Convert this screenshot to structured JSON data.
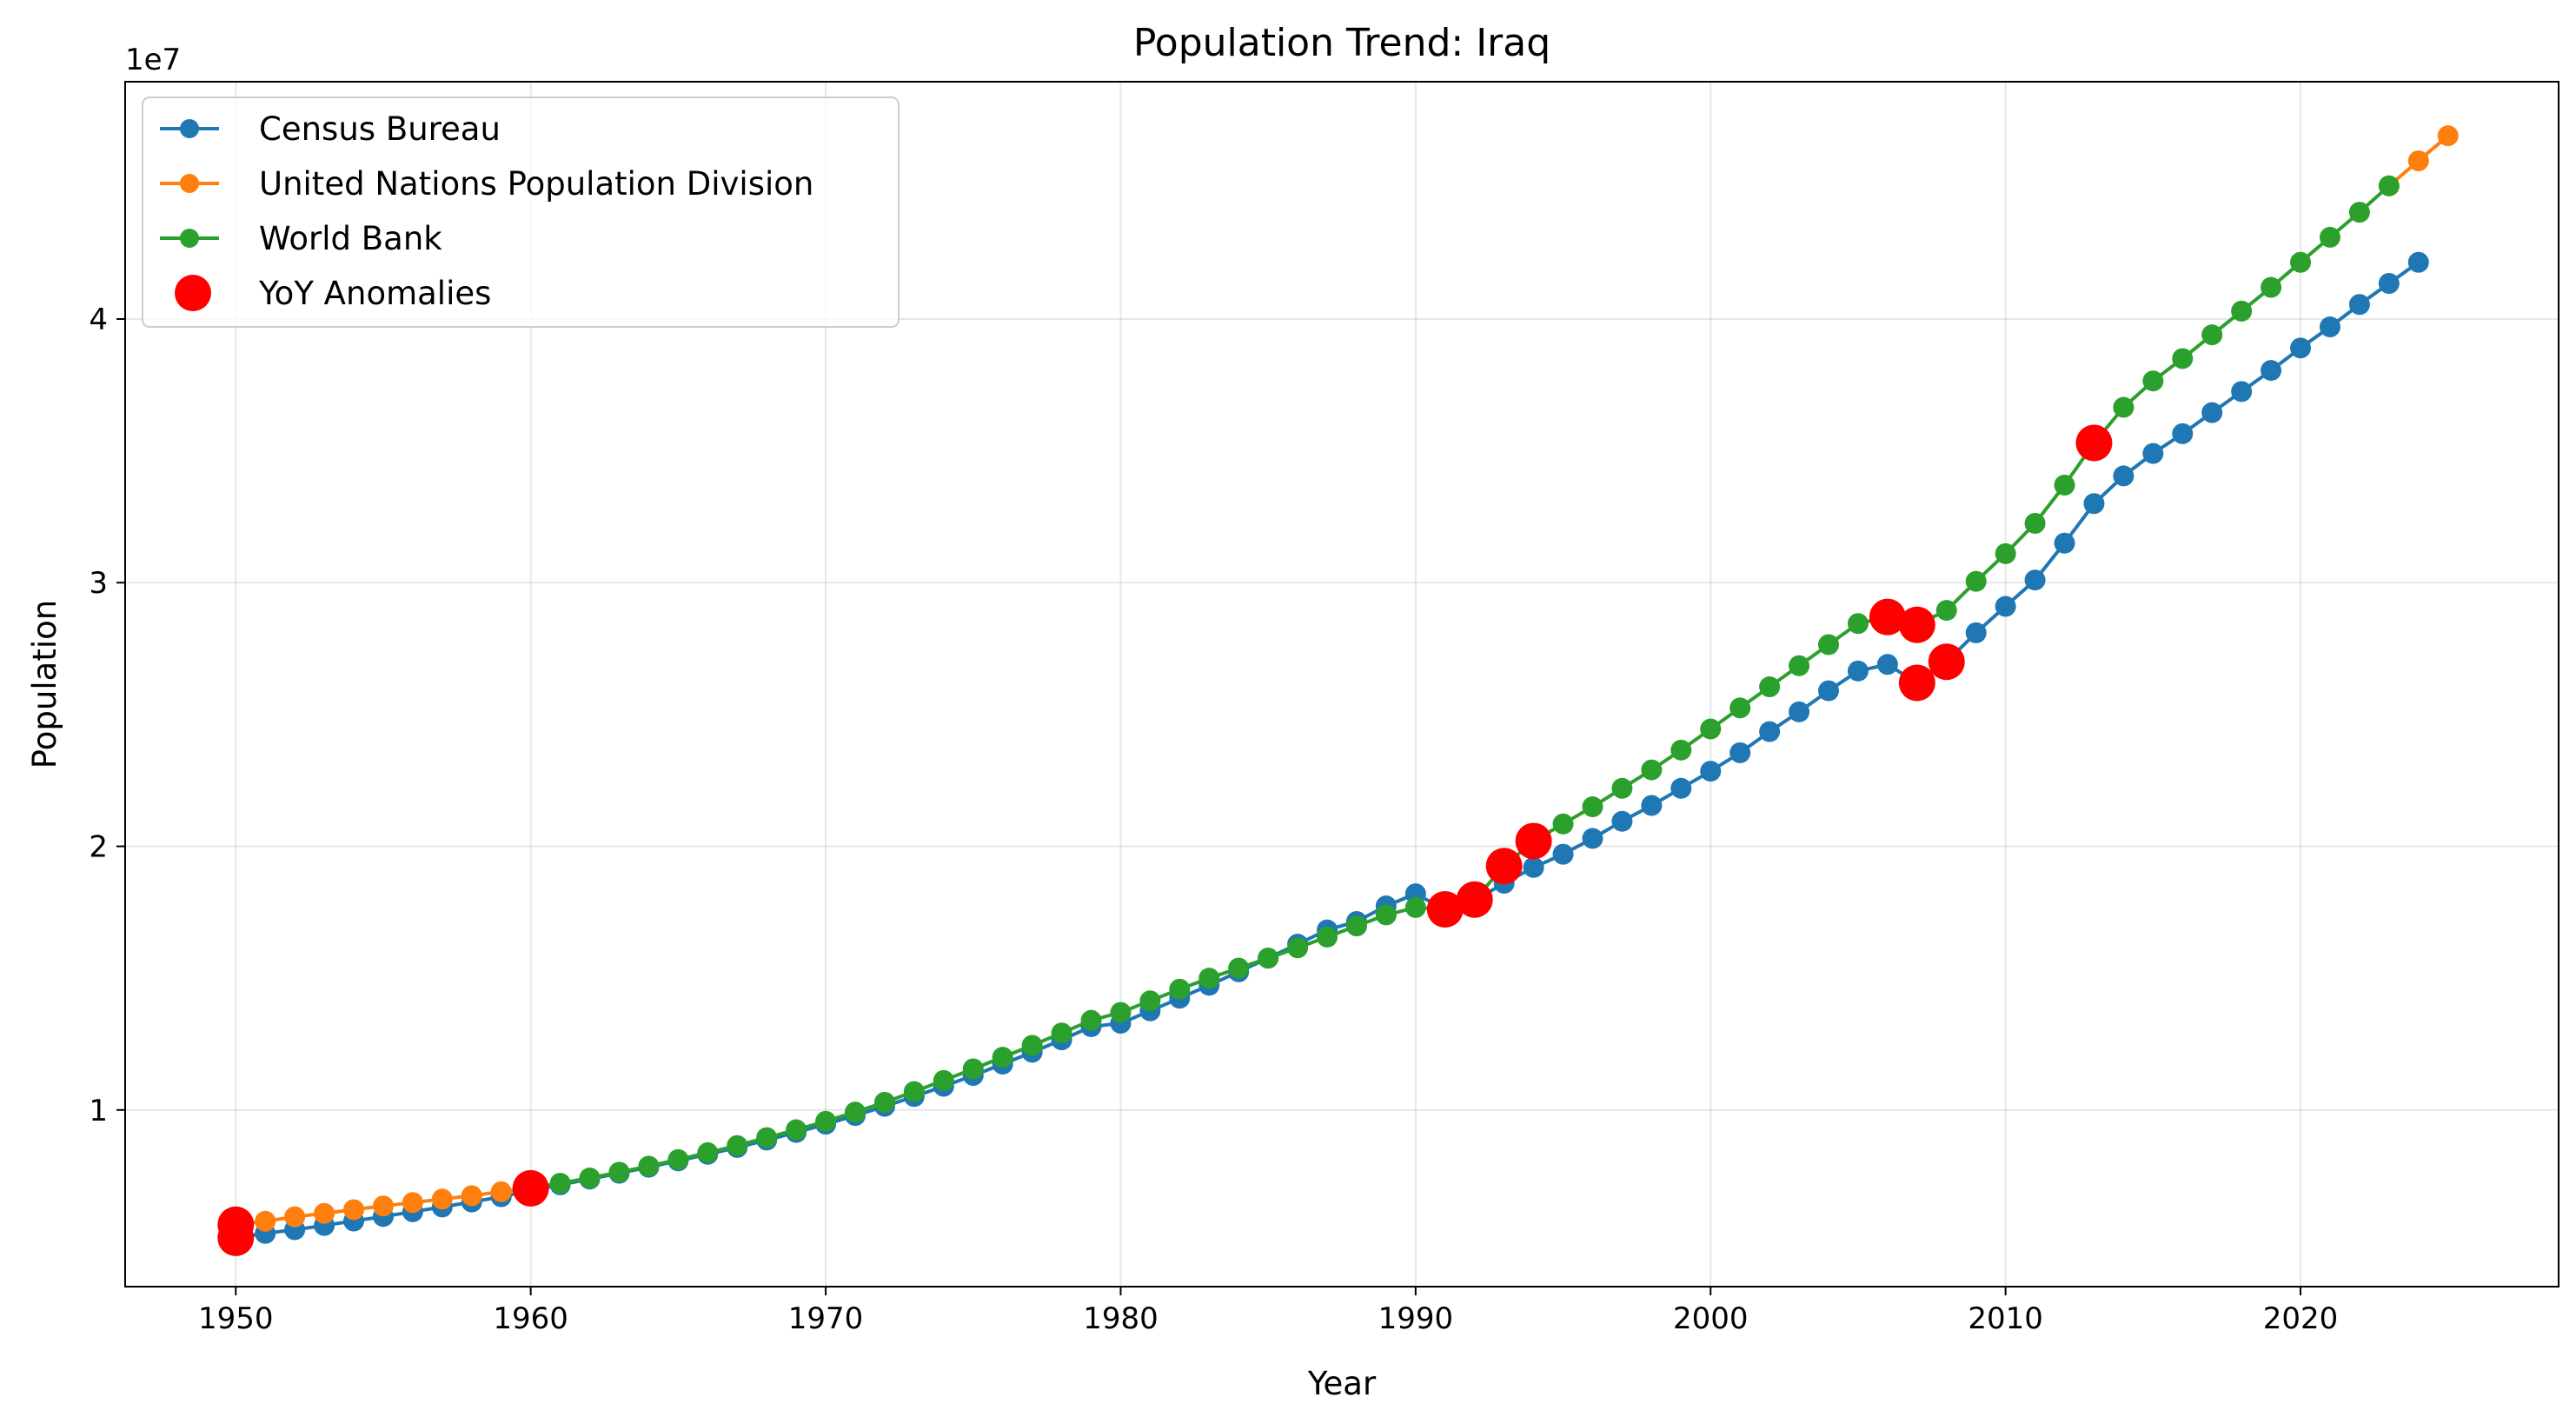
{
  "chart_data": {
    "type": "line",
    "title": "Population Trend: Iraq",
    "xlabel": "Year",
    "ylabel": "Population",
    "y_offset_label": "1e7",
    "xlim": [
      1946.25,
      2028.75
    ],
    "ylim": [
      3300000,
      49000000
    ],
    "xticks": [
      1950,
      1960,
      1970,
      1980,
      1990,
      2000,
      2010,
      2020
    ],
    "xtick_labels": [
      "1950",
      "1960",
      "1970",
      "1980",
      "1990",
      "2000",
      "2010",
      "2020"
    ],
    "yticks": [
      10000000,
      20000000,
      30000000,
      40000000
    ],
    "ytick_labels": [
      "1",
      "2",
      "3",
      "4"
    ],
    "grid": true,
    "legend_position": "upper-left",
    "series": [
      {
        "name": "Census Bureau",
        "color": "#1f77b4",
        "x": [
          1950,
          1951,
          1952,
          1953,
          1954,
          1955,
          1956,
          1957,
          1958,
          1959,
          1960,
          1961,
          1962,
          1963,
          1964,
          1965,
          1966,
          1967,
          1968,
          1969,
          1970,
          1971,
          1972,
          1973,
          1974,
          1975,
          1976,
          1977,
          1978,
          1979,
          1980,
          1981,
          1982,
          1983,
          1984,
          1985,
          1986,
          1987,
          1988,
          1989,
          1990,
          1991,
          1992,
          1993,
          1994,
          1995,
          1996,
          1997,
          1998,
          1999,
          2000,
          2001,
          2002,
          2003,
          2004,
          2005,
          2006,
          2007,
          2008,
          2009,
          2010,
          2011,
          2012,
          2013,
          2014,
          2015,
          2016,
          2017,
          2018,
          2019,
          2020,
          2021,
          2022,
          2023,
          2024
        ],
        "y": [
          5150000,
          5320000,
          5460000,
          5620000,
          5790000,
          5960000,
          6140000,
          6320000,
          6510000,
          6710000,
          6950000,
          7160000,
          7380000,
          7600000,
          7830000,
          8070000,
          8320000,
          8580000,
          8860000,
          9150000,
          9460000,
          9790000,
          10140000,
          10510000,
          10900000,
          11310000,
          11740000,
          12190000,
          12660000,
          13160000,
          13290000,
          13760000,
          14240000,
          14730000,
          15240000,
          15760000,
          16290000,
          16830000,
          17150000,
          17740000,
          18200000,
          17600000,
          17950000,
          18600000,
          19200000,
          19700000,
          20300000,
          20950000,
          21550000,
          22200000,
          22850000,
          23550000,
          24350000,
          25100000,
          25900000,
          26650000,
          26900000,
          26200000,
          27000000,
          28100000,
          29100000,
          30100000,
          31500000,
          33000000,
          34050000,
          34900000,
          35650000,
          36450000,
          37250000,
          38050000,
          38900000,
          39700000,
          40550000,
          41350000,
          42150000
        ]
      },
      {
        "name": "United Nations Population Division",
        "color": "#ff7f0e",
        "x": [
          1950,
          1951,
          1952,
          1953,
          1954,
          1955,
          1956,
          1957,
          1958,
          1959,
          1960,
          2023,
          2024,
          2025
        ],
        "y": [
          5650000,
          5780000,
          5950000,
          6080000,
          6220000,
          6360000,
          6490000,
          6620000,
          6750000,
          6900000,
          7050000,
          45050000,
          46000000,
          46950000
        ]
      },
      {
        "name": "World Bank",
        "color": "#2ca02c",
        "x": [
          1960,
          1961,
          1962,
          1963,
          1964,
          1965,
          1966,
          1967,
          1968,
          1969,
          1970,
          1971,
          1972,
          1973,
          1974,
          1975,
          1976,
          1977,
          1978,
          1979,
          1980,
          1981,
          1982,
          1983,
          1984,
          1985,
          1986,
          1987,
          1988,
          1989,
          1990,
          1991,
          1992,
          1993,
          1994,
          1995,
          1996,
          1997,
          1998,
          1999,
          2000,
          2001,
          2002,
          2003,
          2004,
          2005,
          2006,
          2007,
          2008,
          2009,
          2010,
          2011,
          2012,
          2013,
          2014,
          2015,
          2016,
          2017,
          2018,
          2019,
          2020,
          2021,
          2022,
          2023
        ],
        "y": [
          7030000,
          7220000,
          7420000,
          7640000,
          7870000,
          8120000,
          8380000,
          8650000,
          8950000,
          9250000,
          9570000,
          9920000,
          10290000,
          10700000,
          11120000,
          11560000,
          12000000,
          12450000,
          12920000,
          13400000,
          13700000,
          14140000,
          14580000,
          15000000,
          15380000,
          15760000,
          16150000,
          16560000,
          16980000,
          17400000,
          17680000,
          17610000,
          17980000,
          19250000,
          20200000,
          20850000,
          21500000,
          22200000,
          22900000,
          23650000,
          24450000,
          25250000,
          26050000,
          26850000,
          27650000,
          28450000,
          28700000,
          28400000,
          28950000,
          30050000,
          31100000,
          32250000,
          33700000,
          35300000,
          36650000,
          37650000,
          38500000,
          39400000,
          40300000,
          41200000,
          42150000,
          43100000,
          44050000,
          45050000
        ]
      }
    ],
    "anomalies": {
      "name": "YoY Anomalies",
      "color": "#ff0000",
      "x": [
        1950,
        1950,
        1960,
        1991,
        1992,
        1993,
        1994,
        2006,
        2007,
        2007,
        2008,
        2013
      ],
      "y": [
        5150000,
        5650000,
        7030000,
        17610000,
        17980000,
        19250000,
        20200000,
        28700000,
        28400000,
        26200000,
        27000000,
        35300000
      ]
    }
  }
}
